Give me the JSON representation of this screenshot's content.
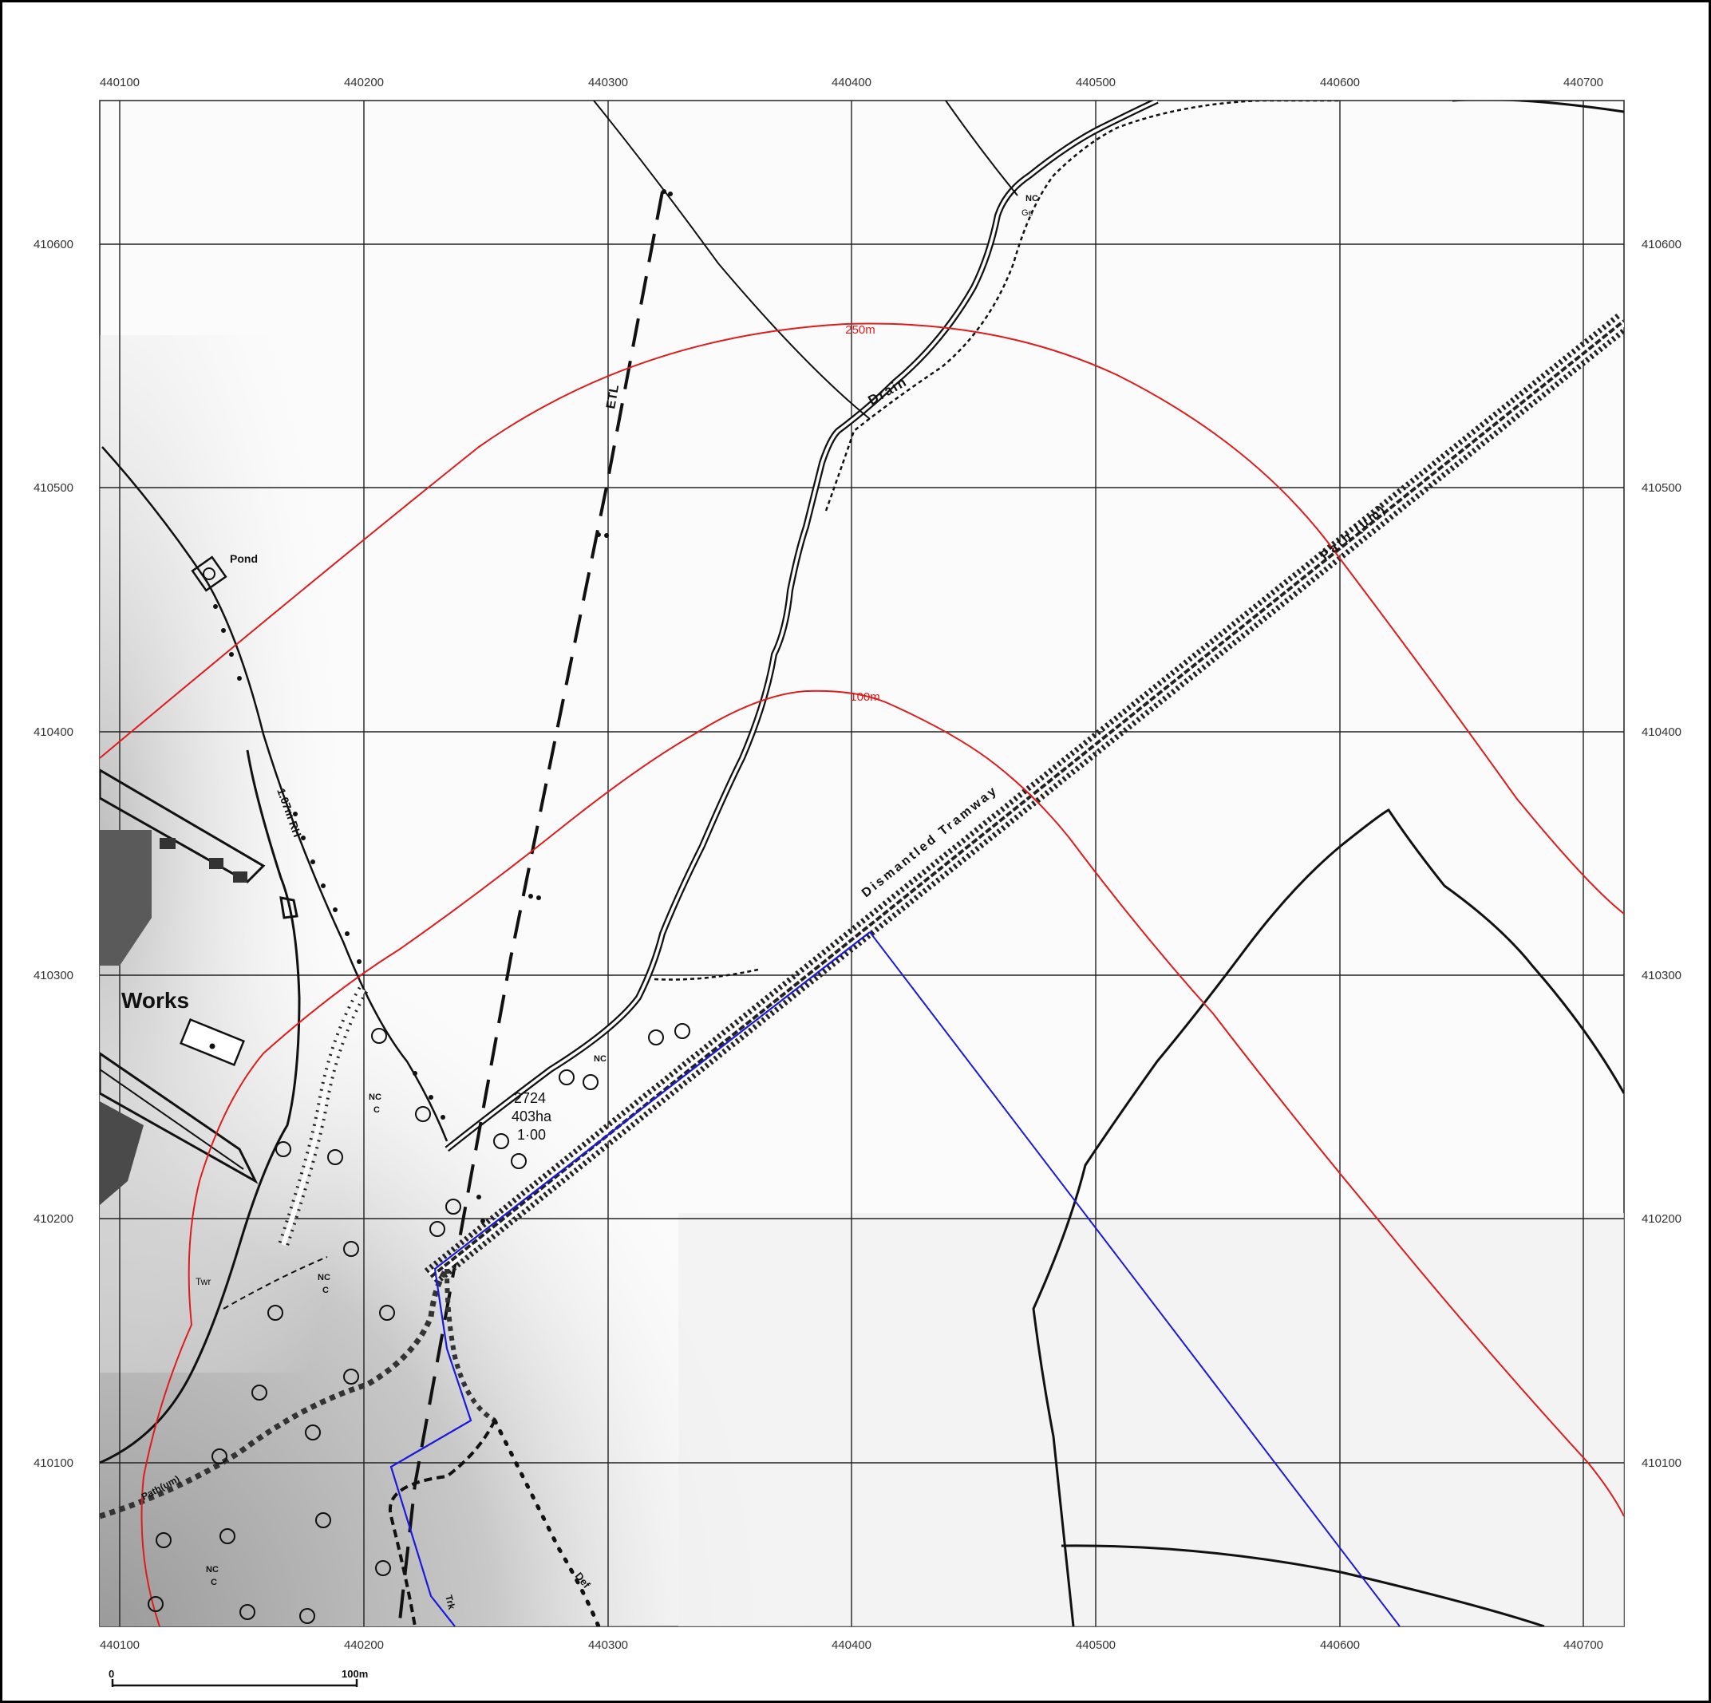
{
  "map": {
    "x_ticks": [
      "440100",
      "440200",
      "440300",
      "440400",
      "440500",
      "440600",
      "440700"
    ],
    "y_ticks": [
      "410600",
      "410500",
      "410400",
      "410300",
      "410200",
      "410100"
    ],
    "buffer_labels": {
      "outer": "250m",
      "inner": "100m"
    },
    "feature_labels": {
      "works": "Works",
      "pond": "Pond",
      "drain": "Drain",
      "etl": "ETL",
      "tramway": "Dismantled Tramway",
      "path_um": "Path (um)",
      "rh": "1.07m RH",
      "twr": "Twr",
      "nc": "NC",
      "c": "C",
      "path_sw": "Path(um)",
      "def": "Def",
      "ge": "Ge",
      "trk": "Trk",
      "parcel_id": "2724",
      "parcel_area": "403ha",
      "parcel_val": "1·00"
    },
    "scale_bar": {
      "start": "0",
      "end": "100m"
    },
    "colors": {
      "buffer": "#e01b1b",
      "site_boundary": "#1a1adc",
      "grid": "#222222"
    }
  }
}
